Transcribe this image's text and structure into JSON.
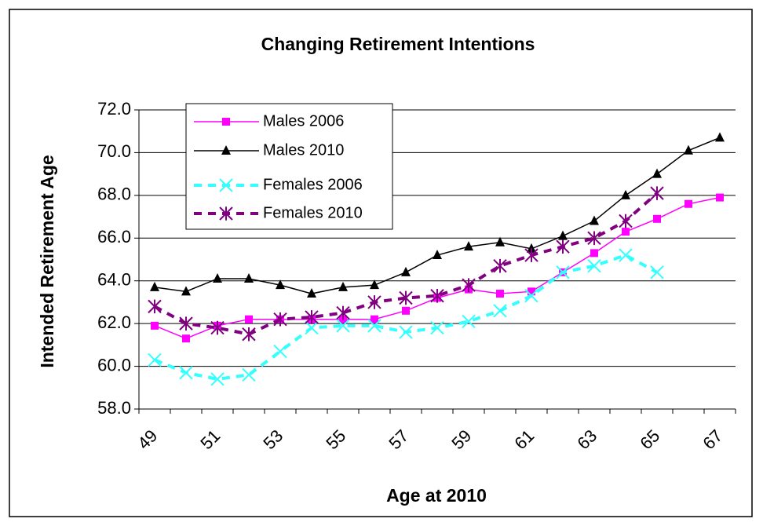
{
  "chart_data": {
    "type": "line",
    "title": "Changing Retirement Intentions",
    "x_label": "Age at 2010",
    "y_label": "Intended Retirement Age",
    "categories": [
      "49",
      null,
      "51",
      null,
      "53",
      null,
      "55",
      null,
      "57",
      null,
      "59",
      null,
      "61",
      null,
      "63",
      null,
      "65",
      null,
      "67"
    ],
    "ylim": [
      58,
      72
    ],
    "yticks": [
      {
        "value": 58,
        "label": "58.0"
      },
      {
        "value": 60,
        "label": "60.0"
      },
      {
        "value": 62,
        "label": "62.0"
      },
      {
        "value": 64,
        "label": "64.0"
      },
      {
        "value": 66,
        "label": "66.0"
      },
      {
        "value": 68,
        "label": "68.0"
      },
      {
        "value": 70,
        "label": "70.0"
      },
      {
        "value": 72,
        "label": "72.0"
      }
    ],
    "grid": true,
    "legend": "upper left",
    "series": [
      {
        "name": "Males 2006",
        "color": "#ff00ff",
        "marker": "square",
        "dashed": false,
        "values": [
          61.9,
          61.3,
          61.9,
          62.2,
          62.2,
          62.2,
          62.2,
          62.2,
          62.6,
          63.2,
          63.6,
          63.4,
          63.5,
          64.4,
          65.3,
          66.3,
          66.9,
          67.6,
          67.9
        ]
      },
      {
        "name": "Males 2010",
        "color": "#000000",
        "marker": "triangle",
        "dashed": false,
        "values": [
          63.7,
          63.5,
          64.1,
          64.1,
          63.8,
          63.4,
          63.7,
          63.8,
          64.4,
          65.2,
          65.6,
          65.8,
          65.5,
          66.1,
          66.8,
          68.0,
          69.0,
          70.1,
          70.7
        ]
      },
      {
        "name": "Females 2006",
        "color": "#33ffff",
        "marker": "x",
        "dashed": true,
        "values": [
          60.3,
          59.7,
          59.4,
          59.6,
          60.7,
          61.8,
          61.9,
          61.9,
          61.6,
          61.8,
          62.1,
          62.6,
          63.3,
          64.4,
          64.7,
          65.2,
          64.4,
          null,
          null
        ]
      },
      {
        "name": "Females 2010",
        "color": "#800080",
        "marker": "asterisk",
        "dashed": true,
        "values": [
          62.8,
          62.0,
          61.8,
          61.5,
          62.2,
          62.3,
          62.5,
          63.0,
          63.2,
          63.3,
          63.8,
          64.7,
          65.2,
          65.6,
          66.0,
          66.8,
          68.1,
          null,
          null
        ]
      }
    ]
  }
}
